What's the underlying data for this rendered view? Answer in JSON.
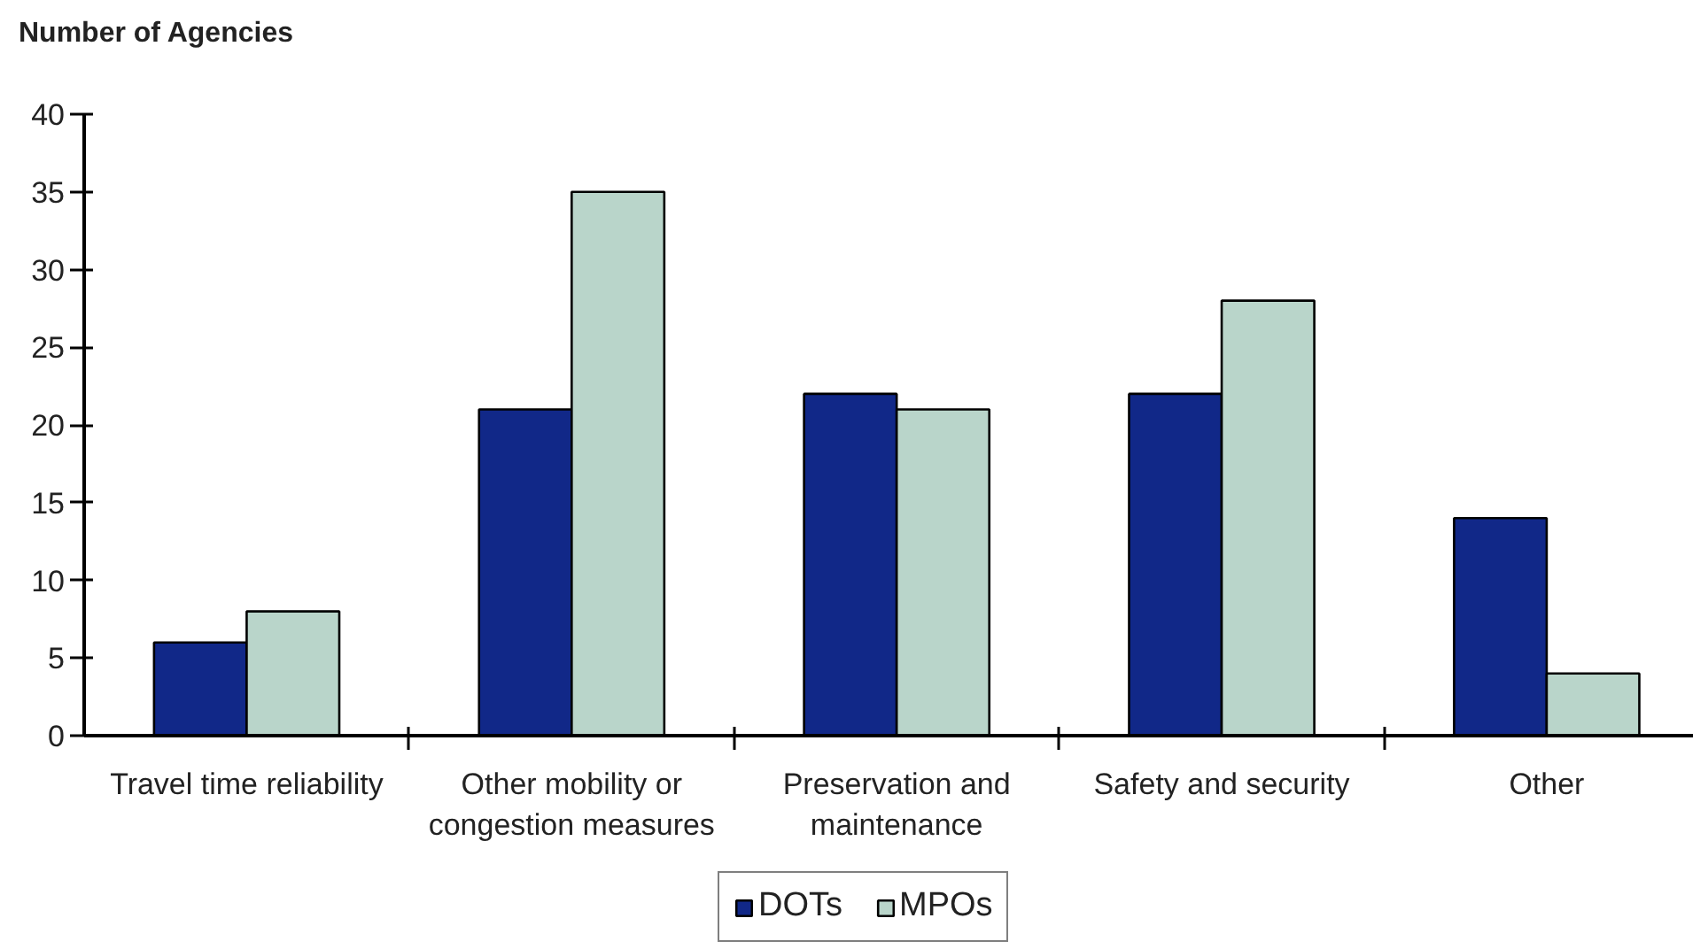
{
  "chart_data": {
    "type": "bar",
    "ylabel": "Number of Agencies",
    "categories": [
      "Travel time reliability",
      "Other mobility or congestion measures",
      "Preservation and maintenance",
      "Safety and security",
      "Other"
    ],
    "series": [
      {
        "name": "DOTs",
        "color": "#112888",
        "values": [
          6,
          21,
          22,
          22,
          14
        ]
      },
      {
        "name": "MPOs",
        "color": "#b9d5ca",
        "values": [
          8,
          35,
          21,
          28,
          4
        ]
      }
    ],
    "ylim": [
      0,
      40
    ],
    "yticks": [
      0,
      5,
      10,
      15,
      20,
      25,
      30,
      35,
      40
    ],
    "grid": false,
    "legend": "bottom"
  }
}
